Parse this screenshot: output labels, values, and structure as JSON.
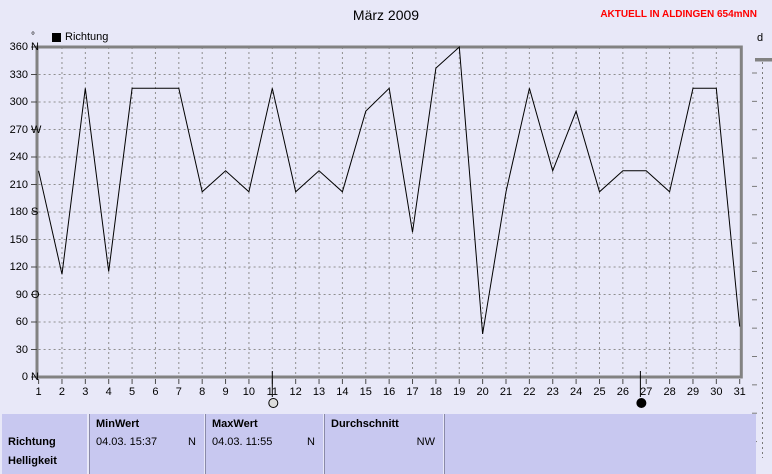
{
  "header": {
    "title": "März 2009",
    "status_label": "AKTUELL IN ALDINGEN 654mNN",
    "status_color": "#ff0000",
    "axis_unit": "°",
    "next_chart_label": "d"
  },
  "legend": {
    "series_label": "Richtung",
    "marker_color": "#000000"
  },
  "chart_data": {
    "type": "line",
    "title": "März 2009",
    "xlabel": "",
    "ylabel": "Richtung (°)",
    "x": [
      1,
      2,
      3,
      4,
      5,
      6,
      7,
      8,
      9,
      10,
      11,
      12,
      13,
      14,
      15,
      16,
      17,
      18,
      19,
      20,
      21,
      22,
      23,
      24,
      25,
      26,
      27,
      28,
      29,
      30,
      31
    ],
    "series": [
      {
        "name": "Richtung",
        "color": "#000000",
        "values": [
          225,
          112,
          315,
          115,
          315,
          315,
          315,
          202,
          225,
          202,
          315,
          202,
          225,
          202,
          290,
          315,
          158,
          337,
          360,
          47,
          202,
          315,
          225,
          290,
          202,
          225,
          225,
          202,
          315,
          315,
          55
        ]
      }
    ],
    "ylim": [
      0,
      360
    ],
    "ytick_step": 30,
    "ytick_letters": {
      "0": "N",
      "90": "O",
      "180": "S",
      "270": "W",
      "360": "N"
    },
    "grid": "dashed",
    "legend_position": "top-left",
    "markers": [
      {
        "day": 11,
        "phase": "full-moon",
        "symbol": "open-circle"
      },
      {
        "day": 26.75,
        "phase": "new-moon",
        "symbol": "filled-circle"
      }
    ]
  },
  "table": {
    "row_label": "Richtung",
    "next_row_label": "Helligkeit",
    "columns": [
      {
        "header": "MinWert",
        "value": "04.03. 15:37",
        "unit": "N"
      },
      {
        "header": "MaxWert",
        "value": "04.03. 11:55",
        "unit": "N"
      },
      {
        "header": "Durchschnitt",
        "value": "NW",
        "unit": ""
      }
    ]
  },
  "colors": {
    "page_bg": "#e8e8f8",
    "table_cell_bg": "#c8c8f0",
    "grid": "#8f8f8f",
    "frame": "#828282",
    "series": "#000000",
    "status": "#ff0000"
  }
}
